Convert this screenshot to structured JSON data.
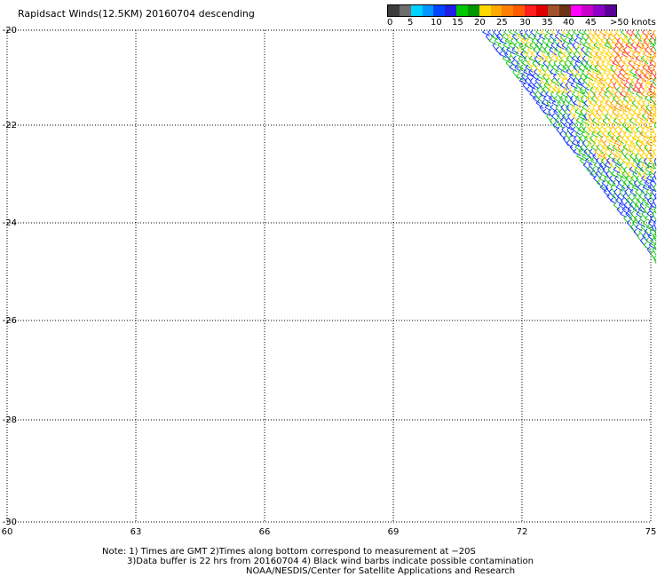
{
  "title": "Rapidsact Winds(12.5KM) 20160704 descending",
  "colorbar": {
    "colors": [
      "#3c3c3c",
      "#6e6e6e",
      "#00d2ff",
      "#0096ff",
      "#0046ff",
      "#1e1ee6",
      "#00c800",
      "#009600",
      "#ffd700",
      "#ffaa00",
      "#ff8000",
      "#ff5a00",
      "#ff1e1e",
      "#dc0000",
      "#a0522d",
      "#6e3214",
      "#ff00ff",
      "#c800c8",
      "#8c00c8",
      "#5a0096"
    ],
    "labels": [
      "0",
      "5",
      "10",
      "15",
      "20",
      "25",
      "30",
      "35",
      "40",
      "45",
      ">50 knots"
    ]
  },
  "axes": {
    "lat_labels": [
      "-20",
      "-22",
      "-24",
      "-26",
      "-28",
      "-30"
    ],
    "lon_labels": [
      "60",
      "63",
      "66",
      "69",
      "72",
      "75"
    ]
  },
  "notes": [
    "Note: 1) Times are GMT 2)Times along bottom correspond to measurement at −20S",
    "3)Data buffer is 22 hrs from 20160704 4) Black wind barbs indicate possible contamination",
    "NOAA/NESDIS/Center for Satellite Applications and Research"
  ],
  "wind_colors": {
    "blue": "#1e3cff",
    "green": "#1ec81e",
    "yellow": "#ffd700",
    "orange": "#ff9600",
    "red": "#ff3c3c"
  }
}
